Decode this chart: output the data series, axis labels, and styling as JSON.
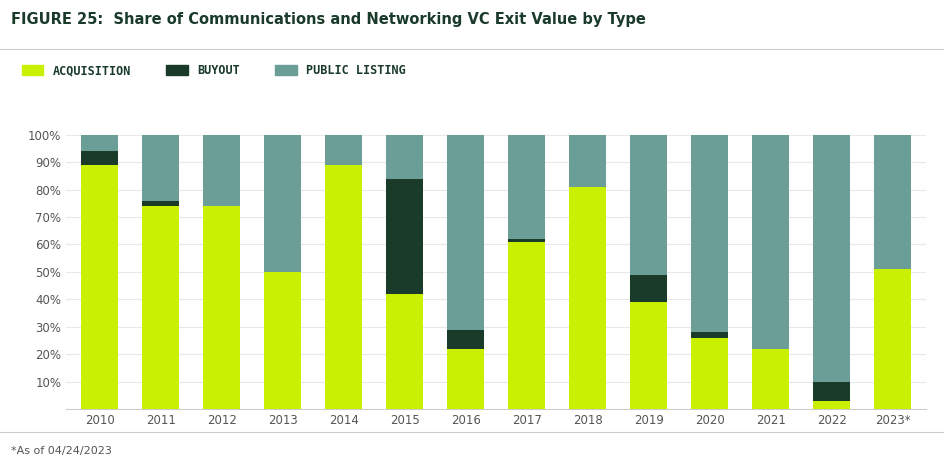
{
  "years": [
    "2010",
    "2011",
    "2012",
    "2013",
    "2014",
    "2015",
    "2016",
    "2017",
    "2018",
    "2019",
    "2020",
    "2021",
    "2022",
    "2023*"
  ],
  "acquisition": [
    89,
    74,
    74,
    50,
    89,
    42,
    22,
    61,
    81,
    39,
    26,
    22,
    3,
    51
  ],
  "buyout": [
    5,
    2,
    0,
    0,
    0,
    42,
    7,
    1,
    0,
    10,
    2,
    0,
    7,
    0
  ],
  "public_listing": [
    6,
    24,
    26,
    50,
    11,
    16,
    71,
    38,
    19,
    51,
    72,
    78,
    90,
    49
  ],
  "acquisition_color": "#c8f000",
  "buyout_color": "#1a3a2a",
  "public_listing_color": "#6b9e96",
  "title": "FIGURE 25:  Share of Communications and Networking VC Exit Value by Type",
  "footnote": "*As of 04/24/2023",
  "legend_labels": [
    "ACQUISITION",
    "BUYOUT",
    "PUBLIC LISTING"
  ],
  "background_color": "#ffffff",
  "title_color": "#1a3a2a",
  "tick_color": "#555555",
  "grid_color": "#e8e8e8"
}
